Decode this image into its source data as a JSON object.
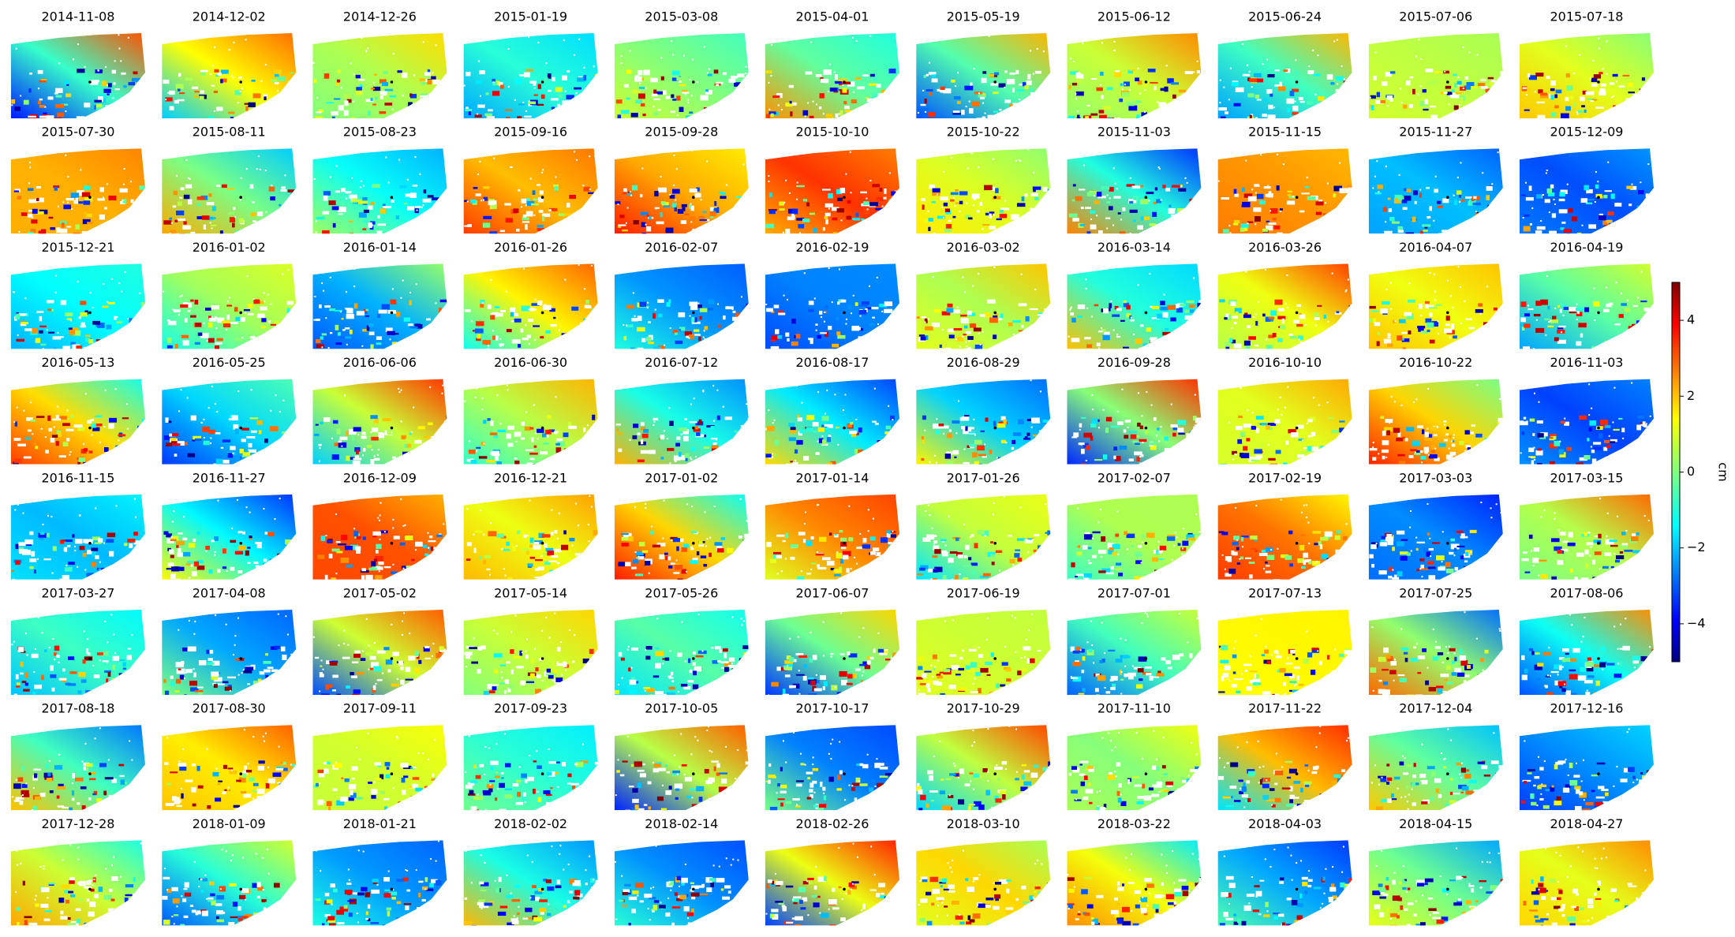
{
  "chart_data": {
    "type": "image-grid",
    "columns": 11,
    "titles": [
      "2014-11-08",
      "2014-12-02",
      "2014-12-26",
      "2015-01-19",
      "2015-03-08",
      "2015-04-01",
      "2015-05-19",
      "2015-06-12",
      "2015-06-24",
      "2015-07-06",
      "2015-07-18",
      "2015-07-30",
      "2015-08-11",
      "2015-08-23",
      "2015-09-16",
      "2015-09-28",
      "2015-10-10",
      "2015-10-22",
      "2015-11-03",
      "2015-11-15",
      "2015-11-27",
      "2015-12-09",
      "2015-12-21",
      "2016-01-02",
      "2016-01-14",
      "2016-01-26",
      "2016-02-07",
      "2016-02-19",
      "2016-03-02",
      "2016-03-14",
      "2016-03-26",
      "2016-04-07",
      "2016-04-19",
      "2016-05-13",
      "2016-05-25",
      "2016-06-06",
      "2016-06-30",
      "2016-07-12",
      "2016-08-17",
      "2016-08-29",
      "2016-09-28",
      "2016-10-10",
      "2016-10-22",
      "2016-11-03",
      "2016-11-15",
      "2016-11-27",
      "2016-12-09",
      "2016-12-21",
      "2017-01-02",
      "2017-01-14",
      "2017-01-26",
      "2017-02-07",
      "2017-02-19",
      "2017-03-03",
      "2017-03-15",
      "2017-03-27",
      "2017-04-08",
      "2017-05-02",
      "2017-05-14",
      "2017-05-26",
      "2017-06-07",
      "2017-06-19",
      "2017-07-01",
      "2017-07-13",
      "2017-07-25",
      "2017-08-06",
      "2017-08-18",
      "2017-08-30",
      "2017-09-11",
      "2017-09-23",
      "2017-10-05",
      "2017-10-17",
      "2017-10-29",
      "2017-11-10",
      "2017-11-22",
      "2017-12-04",
      "2017-12-16",
      "2017-12-28",
      "2018-01-09",
      "2018-01-21",
      "2018-02-02",
      "2018-02-14",
      "2018-02-26",
      "2018-03-10",
      "2018-03-22",
      "2018-04-03",
      "2018-04-15",
      "2018-04-27"
    ],
    "colorbar": {
      "label": "cm",
      "colormap": "jet",
      "lim": [
        -5,
        5
      ],
      "ticks": [
        {
          "value": -4,
          "label": "−4"
        },
        {
          "value": -2,
          "label": "−2"
        },
        0,
        2,
        4
      ]
    }
  }
}
